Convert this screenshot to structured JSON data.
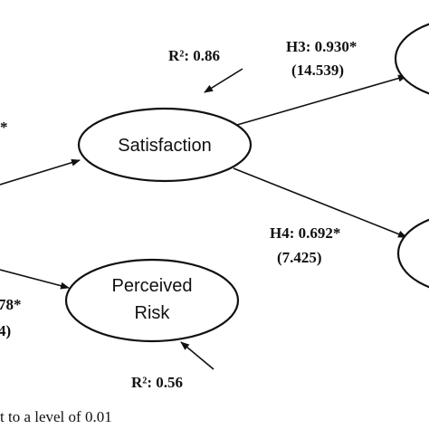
{
  "edges": {
    "r2_satisfaction": "R²: 0.86",
    "h3": {
      "label": "H3: 0.930*",
      "t": "(14.539)"
    },
    "h4": {
      "label": "H4: 0.692*",
      "t": "(7.425)"
    },
    "left_top": "*",
    "left_bottom": {
      "label": "78*",
      "t": "4)"
    },
    "r2_risk": "R²: 0.56"
  },
  "nodes": [
    {
      "label": "Satisfaction"
    },
    {
      "label": [
        "Perceived",
        "Risk"
      ]
    }
  ],
  "footnote": "t to a level of 0.01"
}
